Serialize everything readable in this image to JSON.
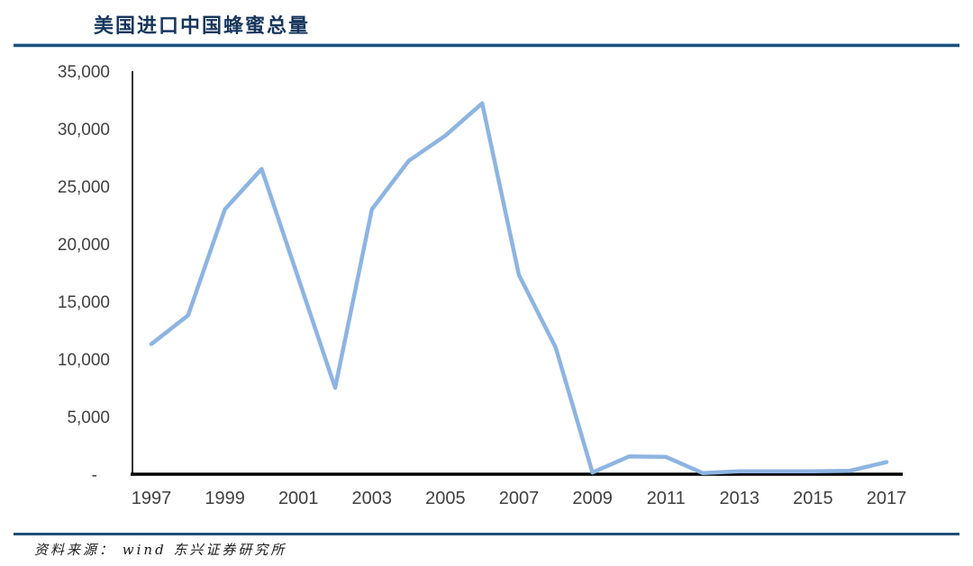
{
  "header": {
    "title": "美国进口中国蜂蜜总量"
  },
  "footer": {
    "source": "资料来源： wind  东兴证券研究所"
  },
  "colors": {
    "title_navy": "#17365d",
    "rule_blue": "#1f4e79",
    "line_blue": "#8db4e2",
    "axis_black": "#000000",
    "axis_gray": "#333333",
    "tick_text": "#404040"
  },
  "chart_data": {
    "type": "line",
    "title": "美国进口中国蜂蜜总量",
    "xlabel": "",
    "ylabel": "",
    "grid": false,
    "legend": false,
    "ylim": [
      0,
      35000
    ],
    "x": [
      1997,
      1998,
      1999,
      2000,
      2001,
      2002,
      2003,
      2004,
      2005,
      2006,
      2007,
      2008,
      2009,
      2010,
      2011,
      2012,
      2013,
      2014,
      2015,
      2016,
      2017
    ],
    "values": [
      11300,
      13800,
      23000,
      26500,
      17000,
      7500,
      23000,
      27200,
      29400,
      32200,
      17300,
      11000,
      150,
      1550,
      1500,
      100,
      250,
      250,
      250,
      300,
      1050
    ],
    "series_name": "美国进口中国蜂蜜总量",
    "x_tick_years": [
      1997,
      1999,
      2001,
      2003,
      2005,
      2007,
      2009,
      2011,
      2013,
      2015,
      2017
    ],
    "y_ticks": [
      0,
      5000,
      10000,
      15000,
      20000,
      25000,
      30000,
      35000
    ],
    "y_tick_labels": [
      "-",
      "5,000",
      "10,000",
      "15,000",
      "20,000",
      "25,000",
      "30,000",
      "35,000"
    ]
  }
}
